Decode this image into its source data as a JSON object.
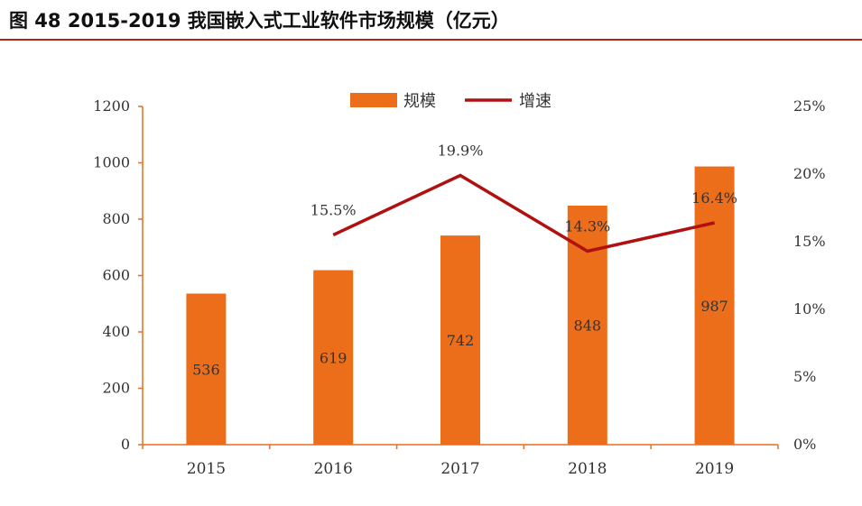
{
  "header": {
    "title": "图 48 2015-2019 我国嵌入式工业软件市场规模（亿元）"
  },
  "colors": {
    "bar": "#ec6d1a",
    "line": "#b01010",
    "axis": "#ec6d1a",
    "rule": "#b02418"
  },
  "chart_data": {
    "type": "bar",
    "title": "2015-2019 我国嵌入式工业软件市场规模（亿元）",
    "categories": [
      "2015",
      "2016",
      "2017",
      "2018",
      "2019"
    ],
    "series": [
      {
        "name": "规模",
        "type": "bar",
        "axis": "left",
        "values": [
          536,
          619,
          742,
          848,
          987
        ],
        "labels": [
          "536",
          "619",
          "742",
          "848",
          "987"
        ]
      },
      {
        "name": "增速",
        "type": "line",
        "axis": "right",
        "values": [
          null,
          15.5,
          19.9,
          14.3,
          16.4
        ],
        "labels": [
          "",
          "15.5%",
          "19.9%",
          "14.3%",
          "16.4%"
        ]
      }
    ],
    "y_left": {
      "min": 0,
      "max": 1200,
      "ticks": [
        "0",
        "200",
        "400",
        "600",
        "800",
        "1000",
        "1200"
      ]
    },
    "y_right": {
      "min": 0,
      "max": 25,
      "ticks": [
        "0%",
        "5%",
        "10%",
        "15%",
        "20%",
        "25%"
      ]
    },
    "legend": {
      "position": "top-center",
      "items": [
        "规模",
        "增速"
      ]
    },
    "grid": false
  }
}
